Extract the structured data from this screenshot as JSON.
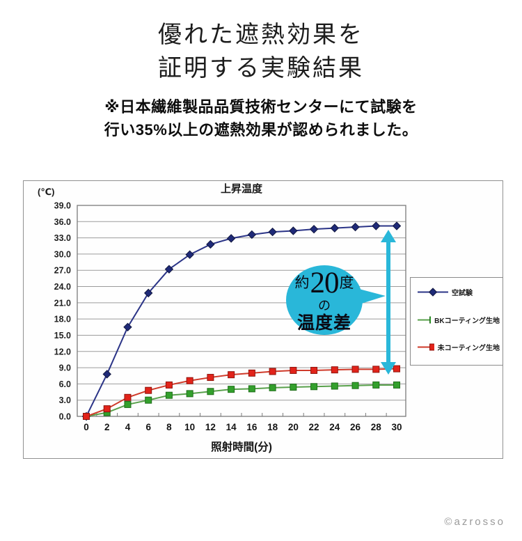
{
  "header": {
    "title_line1": "優れた遮熱効果を",
    "title_line2": "証明する実験結果",
    "subtitle_line1": "※日本繊維製品品質技術センターにて試験を",
    "subtitle_line2": "行い35%以上の遮熱効果が認められました。"
  },
  "annotation": {
    "approx": "約",
    "value": "20",
    "unit": "度",
    "particle": "の",
    "label": "温度差",
    "color": "#29b7d9"
  },
  "footer": {
    "copyright": "©azrosso"
  },
  "chart_data": {
    "type": "line",
    "title": "上昇温度",
    "y_unit_label": "(℃)",
    "xlabel": "照射時間(分)",
    "x": [
      0,
      2,
      4,
      6,
      8,
      10,
      12,
      14,
      16,
      18,
      20,
      22,
      24,
      26,
      28,
      30
    ],
    "ylim": [
      0,
      39
    ],
    "ytick_step": 3,
    "grid": true,
    "legend_position": "right",
    "grid_color": "#9b9b9b",
    "axis_color": "#7a7a7a",
    "series": [
      {
        "name": "空試験",
        "marker": "diamond",
        "color": "#2b3487",
        "marker_fill": "#1f2a78",
        "marker_edge": "#11173f",
        "values": [
          0.0,
          7.8,
          16.5,
          22.8,
          27.2,
          29.9,
          31.8,
          32.9,
          33.6,
          34.1,
          34.3,
          34.6,
          34.8,
          35.0,
          35.2,
          35.2
        ]
      },
      {
        "name": "BKコーティング生地",
        "marker": "square",
        "color": "#58a04b",
        "marker_fill": "#33a02c",
        "marker_edge": "#1f6e1a",
        "values": [
          0.0,
          0.7,
          2.2,
          3.0,
          3.9,
          4.2,
          4.6,
          5.0,
          5.1,
          5.3,
          5.4,
          5.5,
          5.6,
          5.7,
          5.8,
          5.8
        ]
      },
      {
        "name": "未コーティング生地",
        "marker": "square",
        "color": "#cf3a2a",
        "marker_fill": "#e2231a",
        "marker_edge": "#8f130c",
        "values": [
          0.0,
          1.4,
          3.5,
          4.8,
          5.8,
          6.6,
          7.2,
          7.7,
          8.0,
          8.3,
          8.5,
          8.5,
          8.6,
          8.7,
          8.7,
          8.8
        ]
      }
    ]
  }
}
